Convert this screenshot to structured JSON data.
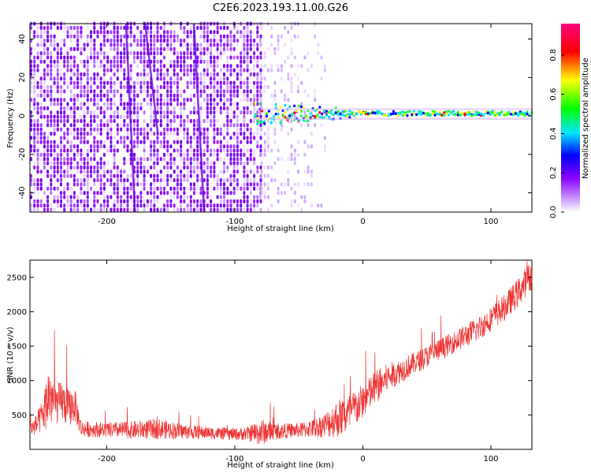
{
  "title": "C2E6.2023.193.11.00.G26",
  "chart_data": [
    {
      "type": "heatmap",
      "xlabel": "Height of straight line (km)",
      "ylabel": "Frequency (Hz)",
      "xlim": [
        -260,
        132
      ],
      "ylim": [
        -50,
        48
      ],
      "xticks": [
        -200,
        -100,
        0,
        100
      ],
      "yticks": [
        -40,
        -20,
        0,
        20,
        40
      ],
      "colorbar": {
        "label": "Normalized spectral amplitude",
        "range": [
          0,
          0.96
        ],
        "ticks": [
          0.0,
          0.2,
          0.4,
          0.6,
          0.8
        ],
        "colormap": [
          "#ffffff",
          "#9b1dff",
          "#0000ff",
          "#00e5ff",
          "#00ff00",
          "#ffff00",
          "#ff0000",
          "#ff0080"
        ]
      },
      "description_regions": {
        "broadband_noise_x_range": [
          -260,
          -80
        ],
        "sparse_noise_x_range": [
          -80,
          -30
        ],
        "carrier_line_freq": 1,
        "carrier_line_x_range": [
          -85,
          132
        ]
      }
    },
    {
      "type": "line",
      "xlabel": "Height of straight line (km)",
      "ylabel": "SNR (10 * v/v)",
      "xlim": [
        -260,
        132
      ],
      "ylim": [
        0,
        2750
      ],
      "xticks": [
        -200,
        -100,
        0,
        100
      ],
      "yticks": [
        500,
        1000,
        1500,
        2000,
        2500
      ],
      "series": [
        {
          "color": "#ee3333",
          "x": [
            -260,
            -255,
            -250,
            -245,
            -240,
            -235,
            -230,
            -225,
            -220,
            -200,
            -180,
            -160,
            -140,
            -120,
            -100,
            -90,
            -80,
            -70,
            -60,
            -50,
            -40,
            -30,
            -20,
            -10,
            0,
            10,
            20,
            30,
            40,
            50,
            60,
            70,
            80,
            90,
            100,
            110,
            120,
            132
          ],
          "values": [
            300,
            350,
            500,
            800,
            650,
            700,
            600,
            650,
            300,
            280,
            280,
            300,
            260,
            240,
            220,
            230,
            250,
            260,
            270,
            280,
            300,
            350,
            450,
            520,
            700,
            900,
            1050,
            1150,
            1250,
            1350,
            1450,
            1550,
            1650,
            1750,
            1900,
            2050,
            2250,
            2550
          ],
          "noise": [
            100,
            150,
            250,
            500,
            300,
            300,
            280,
            250,
            120,
            110,
            130,
            150,
            110,
            90,
            90,
            100,
            200,
            130,
            110,
            110,
            130,
            180,
            280,
            300,
            250,
            260,
            200,
            180,
            160,
            160,
            160,
            160,
            170,
            180,
            180,
            190,
            210,
            220
          ]
        }
      ]
    }
  ]
}
